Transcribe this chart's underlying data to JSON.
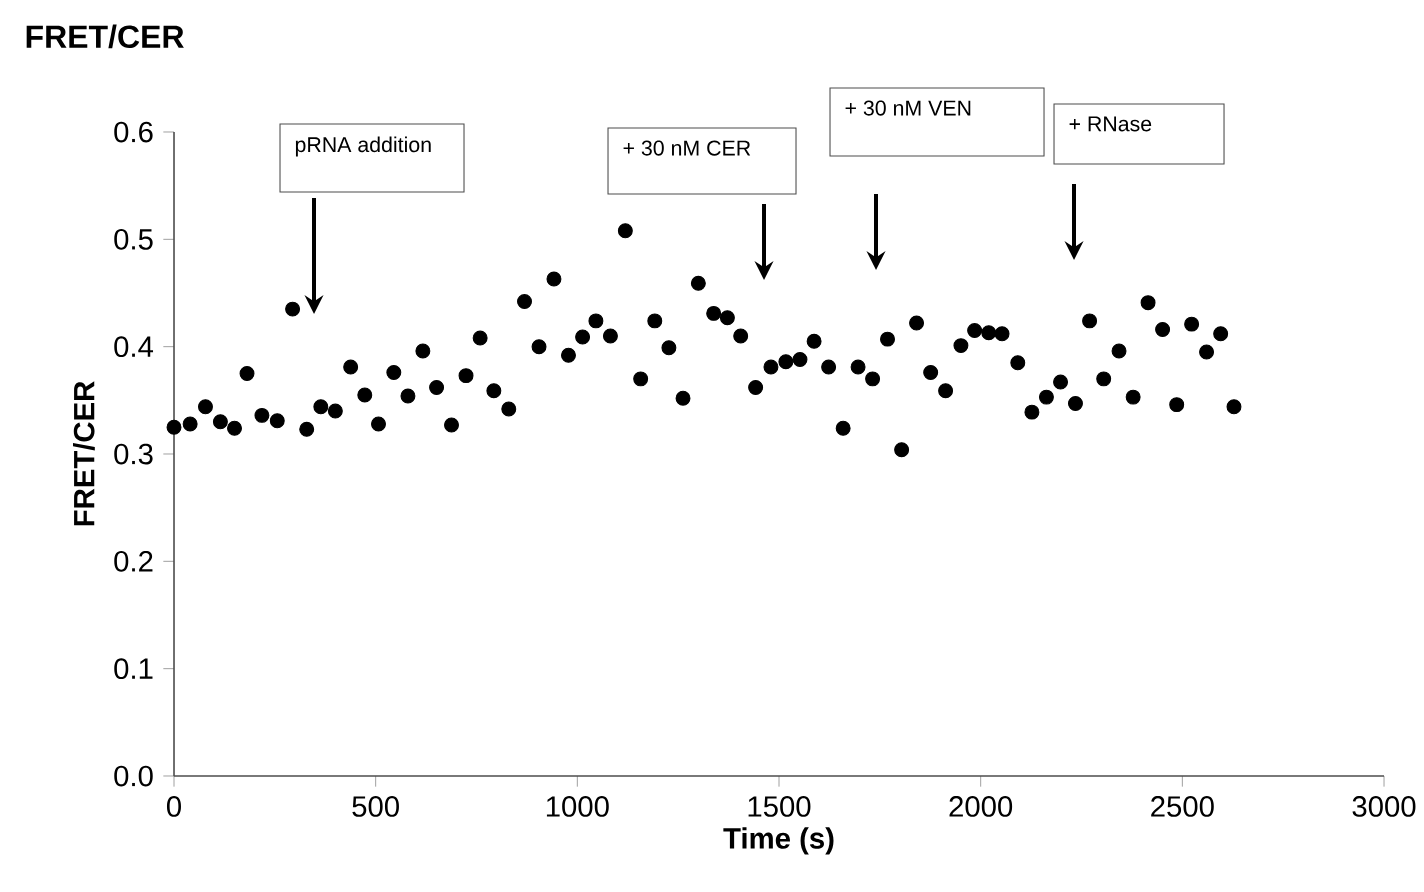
{
  "chart_data": {
    "type": "scatter",
    "title": "FRET/CER",
    "xlabel": "Time (s)",
    "ylabel": "FRET/CER",
    "x": [
      0,
      40,
      78,
      115,
      150,
      181,
      218,
      256,
      294,
      329,
      364,
      400,
      438,
      473,
      507,
      545,
      580,
      617,
      651,
      688,
      724,
      759,
      793,
      830,
      869,
      905,
      942,
      978,
      1013,
      1046,
      1082,
      1119,
      1157,
      1192,
      1227,
      1262,
      1300,
      1338,
      1372,
      1405,
      1442,
      1480,
      1517,
      1552,
      1587,
      1623,
      1659,
      1696,
      1732,
      1769,
      1804,
      1841,
      1876,
      1913,
      1951,
      1985,
      2020,
      2053,
      2092,
      2127,
      2163,
      2198,
      2235,
      2270,
      2305,
      2343,
      2378,
      2415,
      2451,
      2486,
      2523,
      2560,
      2595,
      2628
    ],
    "series": [
      {
        "color": "#000000",
        "values": [
          0.325,
          0.328,
          0.344,
          0.33,
          0.324,
          0.375,
          0.336,
          0.331,
          0.435,
          0.323,
          0.344,
          0.34,
          0.381,
          0.355,
          0.328,
          0.376,
          0.354,
          0.396,
          0.362,
          0.327,
          0.373,
          0.408,
          0.359,
          0.342,
          0.442,
          0.4,
          0.463,
          0.392,
          0.409,
          0.424,
          0.41,
          0.508,
          0.37,
          0.424,
          0.399,
          0.352,
          0.459,
          0.431,
          0.427,
          0.41,
          0.362,
          0.381,
          0.386,
          0.388,
          0.405,
          0.381,
          0.324,
          0.381,
          0.37,
          0.407,
          0.304,
          0.422,
          0.376,
          0.359,
          0.401,
          0.415,
          0.413,
          0.412,
          0.385,
          0.339,
          0.353,
          0.367,
          0.347,
          0.424,
          0.37,
          0.396,
          0.353,
          0.441,
          0.416,
          0.346,
          0.421,
          0.395,
          0.412,
          0.344
        ]
      }
    ],
    "xlim": [
      0,
      3000
    ],
    "xticks": [
      0,
      500,
      1000,
      1500,
      2000,
      2500,
      3000
    ],
    "ylim": [
      0,
      0.6
    ],
    "yticks": [
      {
        "value": 0,
        "label": "0.0"
      },
      {
        "value": 0.1,
        "label": "0.1"
      },
      {
        "value": 0.2,
        "label": "0.2"
      },
      {
        "value": 0.3,
        "label": "0.3"
      },
      {
        "value": 0.4,
        "label": "0.4"
      },
      {
        "value": 0.5,
        "label": "0.5"
      },
      {
        "value": 0.6,
        "label": "0.6"
      }
    ],
    "annotations": [
      "pRNA addition",
      "+ 30 nM CER",
      "+ 30 nM VEN",
      "+ RNase"
    ],
    "grid": false,
    "marker": "circle"
  }
}
